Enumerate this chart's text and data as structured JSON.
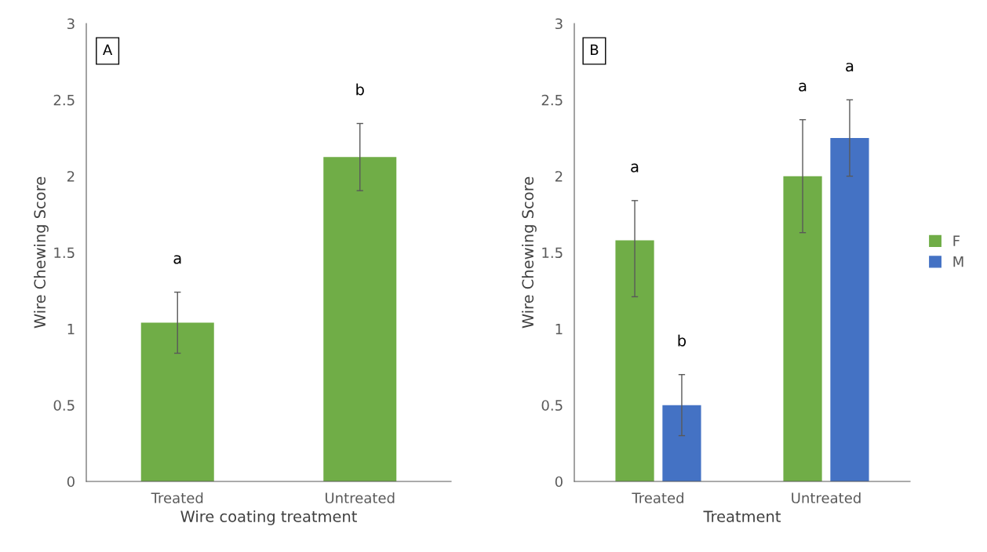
{
  "chart_data": [
    {
      "type": "bar",
      "xlabel": "Wire coating treatment",
      "ylabel": "Wire Chewing Score",
      "categories": [
        "Treated",
        "Untreated"
      ],
      "series": [
        {
          "color": "#70ad47",
          "values": [
            1.04,
            2.125
          ],
          "errors": [
            0.2,
            0.22
          ]
        }
      ],
      "ylim": [
        0,
        3
      ],
      "yticks": [
        0,
        0.5,
        1,
        1.5,
        2,
        2.5,
        3
      ],
      "grid": false,
      "legend": false,
      "annotations": [
        "A",
        "a",
        "b"
      ]
    },
    {
      "type": "bar",
      "xlabel": "Treatment",
      "ylabel": "Wire Chewing Score",
      "categories": [
        "Treated",
        "Untreated"
      ],
      "series": [
        {
          "name": "F",
          "color": "#70ad47",
          "values": [
            1.58,
            2.0
          ],
          "errors": [
            [
              1.21,
              1.84
            ],
            0.37
          ]
        },
        {
          "name": "M",
          "color": "#4472c4",
          "values": [
            0.5,
            2.25
          ],
          "errors": [
            0.2,
            0.25
          ]
        }
      ],
      "ylim": [
        0,
        3
      ],
      "yticks": [
        0,
        0.5,
        1,
        1.5,
        2,
        2.5,
        3
      ],
      "grid": false,
      "legend": "right",
      "annotations": [
        "B",
        "a",
        "b",
        "a",
        "a"
      ]
    }
  ]
}
